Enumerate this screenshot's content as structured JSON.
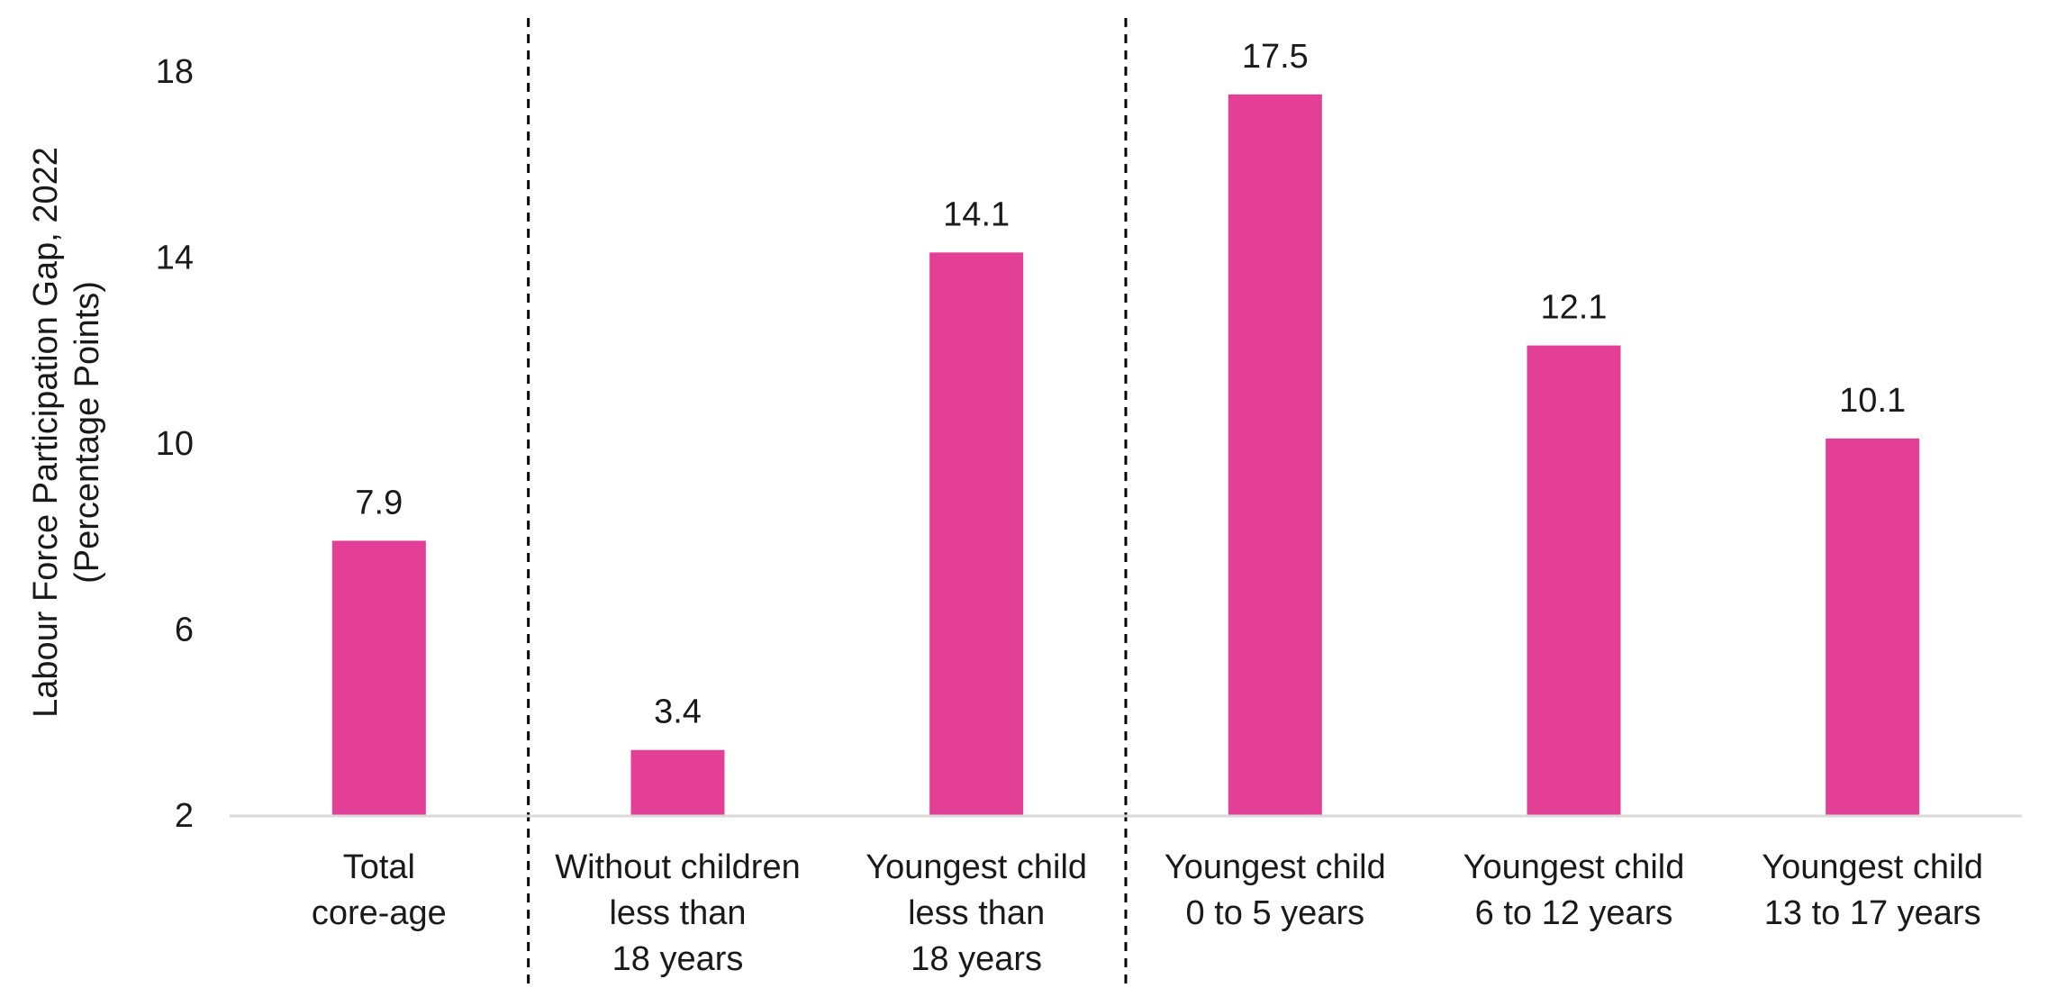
{
  "chart_data": {
    "type": "bar",
    "categories": [
      [
        "Total",
        "core-age"
      ],
      [
        "Without children",
        "less than",
        "18 years"
      ],
      [
        "Youngest child",
        "less than",
        "18 years"
      ],
      [
        "Youngest child",
        "0 to 5 years"
      ],
      [
        "Youngest child",
        "6 to 12 years"
      ],
      [
        "Youngest child",
        "13  to 17 years"
      ]
    ],
    "values": [
      7.9,
      3.4,
      14.1,
      17.5,
      12.1,
      10.1
    ],
    "value_labels": [
      "7.9",
      "3.4",
      "14.1",
      "17.5",
      "12.1",
      "10.1"
    ],
    "ylabel_lines": [
      "Labour Force Participation Gap, 2022",
      "(Percentage Points)"
    ],
    "ylim": [
      2,
      18
    ],
    "yticks": [
      2,
      6,
      10,
      14,
      18
    ],
    "grid": false,
    "group_separators_after": [
      0,
      2
    ],
    "colors": {
      "bar": "#e43f96",
      "axis": "#d9d9d9",
      "separator": "#000000"
    }
  }
}
